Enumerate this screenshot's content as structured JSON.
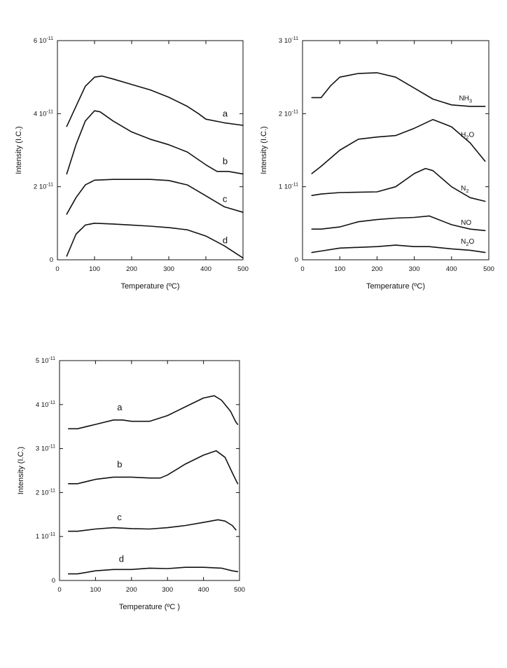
{
  "chart_data": [
    {
      "type": "line",
      "xlabel": "Temperature (ºC)",
      "ylabel": "Intensity (I.C.)",
      "xlim": [
        0,
        500
      ],
      "ylim": [
        0,
        6e-11
      ],
      "xticks": [
        0,
        100,
        200,
        300,
        400,
        500
      ],
      "xtick_labels": [
        "0",
        "100",
        "200",
        "300",
        "400",
        "500"
      ],
      "yticks": [
        0,
        2e-11,
        4e-11,
        6e-11
      ],
      "ytick_labels": [
        {
          "base": "0",
          "exp": ""
        },
        {
          "base": "2 10",
          "exp": "-11"
        },
        {
          "base": "4 10",
          "exp": "-11"
        },
        {
          "base": "6 10",
          "exp": "-11"
        }
      ],
      "grid": false,
      "series": [
        {
          "name": "a",
          "label_at": [
            445,
            3.92e-11
          ],
          "points": [
            [
              25,
              3.65e-11
            ],
            [
              50,
              4.2e-11
            ],
            [
              75,
              4.75e-11
            ],
            [
              100,
              5e-11
            ],
            [
              120,
              5.03e-11
            ],
            [
              150,
              4.95e-11
            ],
            [
              200,
              4.8e-11
            ],
            [
              250,
              4.65e-11
            ],
            [
              300,
              4.45e-11
            ],
            [
              350,
              4.2e-11
            ],
            [
              380,
              4e-11
            ],
            [
              400,
              3.85e-11
            ],
            [
              450,
              3.75e-11
            ],
            [
              500,
              3.68e-11
            ]
          ]
        },
        {
          "name": "b",
          "label_at": [
            445,
            2.62e-11
          ],
          "points": [
            [
              25,
              2.35e-11
            ],
            [
              50,
              3.15e-11
            ],
            [
              75,
              3.8e-11
            ],
            [
              100,
              4.08e-11
            ],
            [
              115,
              4.05e-11
            ],
            [
              150,
              3.8e-11
            ],
            [
              200,
              3.5e-11
            ],
            [
              250,
              3.3e-11
            ],
            [
              300,
              3.15e-11
            ],
            [
              350,
              2.95e-11
            ],
            [
              400,
              2.6e-11
            ],
            [
              430,
              2.42e-11
            ],
            [
              460,
              2.42e-11
            ],
            [
              500,
              2.35e-11
            ]
          ]
        },
        {
          "name": "c",
          "label_at": [
            445,
            1.58e-11
          ],
          "points": [
            [
              25,
              1.25e-11
            ],
            [
              50,
              1.7e-11
            ],
            [
              75,
              2.05e-11
            ],
            [
              100,
              2.18e-11
            ],
            [
              150,
              2.2e-11
            ],
            [
              200,
              2.2e-11
            ],
            [
              250,
              2.2e-11
            ],
            [
              300,
              2.17e-11
            ],
            [
              350,
              2.05e-11
            ],
            [
              400,
              1.75e-11
            ],
            [
              450,
              1.45e-11
            ],
            [
              500,
              1.3e-11
            ]
          ]
        },
        {
          "name": "d",
          "label_at": [
            445,
            4.5e-12
          ],
          "points": [
            [
              25,
              1e-12
            ],
            [
              50,
              7e-12
            ],
            [
              75,
              9.5e-12
            ],
            [
              100,
              1e-11
            ],
            [
              150,
              9.8e-12
            ],
            [
              200,
              9.5e-12
            ],
            [
              250,
              9.2e-12
            ],
            [
              300,
              8.8e-12
            ],
            [
              350,
              8.2e-12
            ],
            [
              400,
              6.5e-12
            ],
            [
              450,
              3.8e-12
            ],
            [
              500,
              5e-13
            ]
          ]
        }
      ]
    },
    {
      "type": "line",
      "xlabel": "Temperature (ºC)",
      "ylabel": "Intensity (I.C.)",
      "xlim": [
        0,
        500
      ],
      "ylim": [
        0,
        3e-11
      ],
      "xticks": [
        0,
        100,
        200,
        300,
        400,
        500
      ],
      "xtick_labels": [
        "0",
        "100",
        "200",
        "300",
        "400",
        "500"
      ],
      "yticks": [
        0,
        1e-11,
        2e-11,
        3e-11
      ],
      "ytick_labels": [
        {
          "base": "0",
          "exp": ""
        },
        {
          "base": "1 10",
          "exp": "-11"
        },
        {
          "base": "2 10",
          "exp": "-11"
        },
        {
          "base": "3 10",
          "exp": "-11"
        }
      ],
      "grid": false,
      "series": [
        {
          "name": "NH",
          "name_sub": "3",
          "label_at": [
            420,
            2.18e-11
          ],
          "points": [
            [
              25,
              2.22e-11
            ],
            [
              50,
              2.22e-11
            ],
            [
              75,
              2.38e-11
            ],
            [
              100,
              2.5e-11
            ],
            [
              150,
              2.55e-11
            ],
            [
              200,
              2.56e-11
            ],
            [
              250,
              2.5e-11
            ],
            [
              300,
              2.35e-11
            ],
            [
              350,
              2.2e-11
            ],
            [
              400,
              2.12e-11
            ],
            [
              450,
              2.1e-11
            ],
            [
              490,
              2.1e-11
            ]
          ]
        },
        {
          "name": "H",
          "name_sub": "2",
          "name_suffix": "O",
          "label_at": [
            425,
            1.68e-11
          ],
          "points": [
            [
              25,
              1.18e-11
            ],
            [
              50,
              1.28e-11
            ],
            [
              100,
              1.5e-11
            ],
            [
              150,
              1.65e-11
            ],
            [
              200,
              1.68e-11
            ],
            [
              250,
              1.7e-11
            ],
            [
              300,
              1.8e-11
            ],
            [
              350,
              1.92e-11
            ],
            [
              400,
              1.82e-11
            ],
            [
              450,
              1.6e-11
            ],
            [
              490,
              1.35e-11
            ]
          ]
        },
        {
          "name": "N",
          "name_sub": "2",
          "label_at": [
            425,
            9.5e-12
          ],
          "points": [
            [
              25,
              8.8e-12
            ],
            [
              50,
              9e-12
            ],
            [
              100,
              9.2e-12
            ],
            [
              200,
              9.3e-12
            ],
            [
              250,
              1e-11
            ],
            [
              300,
              1.18e-11
            ],
            [
              330,
              1.25e-11
            ],
            [
              350,
              1.22e-11
            ],
            [
              400,
              1e-11
            ],
            [
              450,
              8.5e-12
            ],
            [
              490,
              8e-12
            ]
          ]
        },
        {
          "name": "NO",
          "label_at": [
            425,
            4.8e-12
          ],
          "points": [
            [
              25,
              4.2e-12
            ],
            [
              50,
              4.2e-12
            ],
            [
              100,
              4.5e-12
            ],
            [
              150,
              5.2e-12
            ],
            [
              200,
              5.5e-12
            ],
            [
              250,
              5.7e-12
            ],
            [
              300,
              5.8e-12
            ],
            [
              340,
              6e-12
            ],
            [
              400,
              4.8e-12
            ],
            [
              450,
              4.2e-12
            ],
            [
              490,
              4e-12
            ]
          ]
        },
        {
          "name": "N",
          "name_sub": "2",
          "name_suffix": "O",
          "label_at": [
            425,
            2.2e-12
          ],
          "points": [
            [
              25,
              1e-12
            ],
            [
              50,
              1.2e-12
            ],
            [
              100,
              1.6e-12
            ],
            [
              200,
              1.8e-12
            ],
            [
              250,
              2e-12
            ],
            [
              300,
              1.8e-12
            ],
            [
              340,
              1.8e-12
            ],
            [
              400,
              1.5e-12
            ],
            [
              450,
              1.3e-12
            ],
            [
              490,
              1e-12
            ]
          ]
        }
      ]
    },
    {
      "type": "line",
      "xlabel": "Temperature (ºC )",
      "ylabel": "Intensity (I.C.)",
      "xlim": [
        0,
        500
      ],
      "ylim": [
        0,
        5e-11
      ],
      "xticks": [
        0,
        100,
        200,
        300,
        400,
        500
      ],
      "xtick_labels": [
        "0",
        "100",
        "200",
        "300",
        "400",
        "500"
      ],
      "yticks": [
        0,
        1e-11,
        2e-11,
        3e-11,
        4e-11,
        5e-11
      ],
      "ytick_labels": [
        {
          "base": "0",
          "exp": ""
        },
        {
          "base": "1 10",
          "exp": "-11"
        },
        {
          "base": "2 10",
          "exp": "-11"
        },
        {
          "base": "3 10",
          "exp": "-11"
        },
        {
          "base": "4 10",
          "exp": "-11"
        },
        {
          "base": "5 10",
          "exp": "-11"
        }
      ],
      "grid": false,
      "series": [
        {
          "name": "a",
          "label_at": [
            160,
            3.87e-11
          ],
          "points": [
            [
              25,
              3.45e-11
            ],
            [
              50,
              3.45e-11
            ],
            [
              100,
              3.55e-11
            ],
            [
              150,
              3.65e-11
            ],
            [
              175,
              3.65e-11
            ],
            [
              200,
              3.62e-11
            ],
            [
              250,
              3.62e-11
            ],
            [
              300,
              3.75e-11
            ],
            [
              350,
              3.95e-11
            ],
            [
              400,
              4.15e-11
            ],
            [
              430,
              4.2e-11
            ],
            [
              450,
              4.1e-11
            ],
            [
              475,
              3.85e-11
            ],
            [
              490,
              3.6e-11
            ],
            [
              495,
              3.55e-11
            ]
          ]
        },
        {
          "name": "b",
          "label_at": [
            160,
            2.57e-11
          ],
          "points": [
            [
              25,
              2.2e-11
            ],
            [
              50,
              2.2e-11
            ],
            [
              100,
              2.3e-11
            ],
            [
              150,
              2.35e-11
            ],
            [
              200,
              2.35e-11
            ],
            [
              250,
              2.33e-11
            ],
            [
              280,
              2.33e-11
            ],
            [
              300,
              2.4e-11
            ],
            [
              350,
              2.65e-11
            ],
            [
              400,
              2.85e-11
            ],
            [
              435,
              2.95e-11
            ],
            [
              460,
              2.8e-11
            ],
            [
              480,
              2.45e-11
            ],
            [
              495,
              2.2e-11
            ]
          ]
        },
        {
          "name": "c",
          "label_at": [
            160,
            1.37e-11
          ],
          "points": [
            [
              25,
              1.12e-11
            ],
            [
              50,
              1.12e-11
            ],
            [
              100,
              1.17e-11
            ],
            [
              150,
              1.2e-11
            ],
            [
              200,
              1.18e-11
            ],
            [
              250,
              1.17e-11
            ],
            [
              300,
              1.2e-11
            ],
            [
              350,
              1.25e-11
            ],
            [
              400,
              1.32e-11
            ],
            [
              440,
              1.38e-11
            ],
            [
              460,
              1.35e-11
            ],
            [
              480,
              1.25e-11
            ],
            [
              490,
              1.15e-11
            ]
          ]
        },
        {
          "name": "d",
          "label_at": [
            165,
            4.2e-12
          ],
          "points": [
            [
              25,
              1.5e-12
            ],
            [
              50,
              1.5e-12
            ],
            [
              100,
              2.2e-12
            ],
            [
              150,
              2.5e-12
            ],
            [
              200,
              2.5e-12
            ],
            [
              250,
              2.8e-12
            ],
            [
              300,
              2.7e-12
            ],
            [
              350,
              3e-12
            ],
            [
              400,
              3e-12
            ],
            [
              450,
              2.8e-12
            ],
            [
              480,
              2.2e-12
            ],
            [
              495,
              2e-12
            ]
          ]
        }
      ]
    }
  ]
}
